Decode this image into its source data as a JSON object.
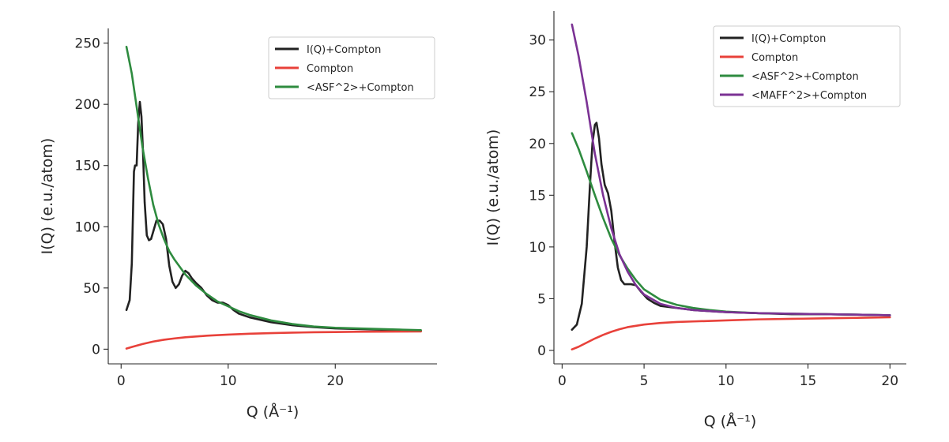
{
  "chart_data": [
    {
      "type": "line",
      "xlabel": "Q (Å⁻¹)",
      "ylabel": "I(Q) (e.u./atom)",
      "xlim": [
        -1.2,
        29.5
      ],
      "ylim": [
        -12,
        262
      ],
      "xticks": [
        0,
        10,
        20
      ],
      "yticks": [
        0,
        50,
        100,
        150,
        200,
        250
      ],
      "legend_position": "top-right",
      "grid": false,
      "series": [
        {
          "name": "I(Q)+Compton",
          "color": "#222222",
          "x": [
            0.5,
            0.8,
            1.0,
            1.2,
            1.3,
            1.45,
            1.6,
            1.75,
            1.9,
            2.05,
            2.2,
            2.4,
            2.6,
            2.8,
            3.0,
            3.3,
            3.6,
            3.9,
            4.2,
            4.5,
            4.8,
            5.1,
            5.4,
            5.7,
            6.0,
            6.3,
            6.6,
            7.0,
            7.5,
            8.0,
            8.5,
            9.0,
            9.5,
            10.0,
            10.5,
            11.0,
            12.0,
            14.0,
            16.0,
            18.0,
            20.0,
            22.0,
            24.0,
            26.0,
            28.0
          ],
          "values": [
            32,
            40,
            70,
            145,
            150,
            150,
            185,
            202,
            190,
            160,
            120,
            93,
            89,
            90,
            96,
            105,
            105,
            102,
            90,
            68,
            55,
            50,
            53,
            60,
            64,
            62,
            58,
            54,
            50,
            44,
            40,
            38,
            38,
            36,
            32,
            29,
            26,
            22,
            19.5,
            18,
            17,
            16.5,
            16,
            15.5,
            15
          ]
        },
        {
          "name": "Compton",
          "color": "#e8413a",
          "x": [
            0.5,
            1,
            2,
            3,
            4,
            5,
            6,
            8,
            10,
            12,
            14,
            16,
            18,
            20,
            22,
            24,
            26,
            28
          ],
          "values": [
            0.5,
            1.8,
            4.2,
            6.2,
            7.7,
            8.8,
            9.7,
            11.0,
            11.9,
            12.6,
            13.1,
            13.5,
            13.8,
            14.0,
            14.2,
            14.3,
            14.4,
            14.5
          ]
        },
        {
          "name": "<ASF^2>+Compton",
          "color": "#2e8b3f",
          "x": [
            0.5,
            1,
            1.5,
            2,
            2.5,
            3,
            3.5,
            4,
            4.5,
            5,
            6,
            7,
            8,
            9,
            10,
            11,
            12,
            14,
            16,
            18,
            20,
            22,
            24,
            26,
            28
          ],
          "values": [
            247,
            225,
            195,
            165,
            140,
            118,
            102,
            90,
            80,
            73,
            61,
            52,
            45,
            39,
            35,
            31,
            28,
            23.5,
            20.5,
            18.5,
            17.5,
            17,
            16.5,
            16,
            15.5
          ]
        }
      ]
    },
    {
      "type": "line",
      "xlabel": "Q (Å⁻¹)",
      "ylabel": "I(Q) (e.u./atom)",
      "xlim": [
        -0.5,
        21
      ],
      "ylim": [
        -1.3,
        32.8
      ],
      "xticks": [
        0,
        5,
        10,
        15,
        20
      ],
      "yticks": [
        0,
        5,
        10,
        15,
        20,
        25,
        30
      ],
      "legend_position": "top-right",
      "grid": false,
      "series": [
        {
          "name": "I(Q)+Compton",
          "color": "#222222",
          "x": [
            0.6,
            0.9,
            1.2,
            1.5,
            1.7,
            1.85,
            2.0,
            2.1,
            2.25,
            2.4,
            2.6,
            2.8,
            3.0,
            3.2,
            3.4,
            3.6,
            3.8,
            4.0,
            4.2,
            4.5,
            4.8,
            5.2,
            5.6,
            6.0,
            7.0,
            8.0,
            9.0,
            10.0,
            12.0,
            14.0,
            16.0,
            18.0,
            20.0
          ],
          "values": [
            2,
            2.5,
            4.5,
            10,
            16,
            20,
            21.8,
            22,
            20.5,
            18,
            16,
            15.2,
            13.5,
            10.5,
            8,
            6.8,
            6.4,
            6.4,
            6.4,
            6.3,
            5.7,
            5.0,
            4.6,
            4.3,
            4.1,
            3.9,
            3.8,
            3.7,
            3.6,
            3.5,
            3.5,
            3.45,
            3.4
          ]
        },
        {
          "name": "Compton",
          "color": "#e8413a",
          "x": [
            0.6,
            1,
            1.5,
            2,
            2.5,
            3,
            3.5,
            4,
            5,
            6,
            7,
            8,
            10,
            12,
            14,
            16,
            18,
            20
          ],
          "values": [
            0.1,
            0.35,
            0.75,
            1.15,
            1.5,
            1.8,
            2.05,
            2.25,
            2.5,
            2.65,
            2.75,
            2.8,
            2.9,
            3.0,
            3.05,
            3.1,
            3.15,
            3.2
          ]
        },
        {
          "name": "<ASF^2>+Compton",
          "color": "#2e8b3f",
          "x": [
            0.6,
            1,
            1.5,
            2,
            2.5,
            3,
            3.5,
            4,
            4.5,
            5,
            6,
            7,
            8,
            9,
            10,
            12,
            14,
            16,
            18,
            20
          ],
          "values": [
            21,
            19.5,
            17.3,
            15,
            12.8,
            10.8,
            9.2,
            7.9,
            6.8,
            5.9,
            4.9,
            4.4,
            4.1,
            3.9,
            3.75,
            3.6,
            3.55,
            3.5,
            3.45,
            3.4
          ]
        },
        {
          "name": "<MAFF^2>+Compton",
          "color": "#7b3294",
          "x": [
            0.6,
            1,
            1.5,
            2,
            2.5,
            3,
            3.5,
            4,
            4.5,
            5,
            6,
            7,
            8,
            9,
            10,
            12,
            14,
            16,
            18,
            20
          ],
          "values": [
            31.5,
            28.5,
            24,
            19,
            15,
            11.8,
            9.3,
            7.6,
            6.3,
            5.4,
            4.5,
            4.1,
            3.9,
            3.8,
            3.7,
            3.6,
            3.55,
            3.5,
            3.45,
            3.4
          ]
        }
      ]
    }
  ]
}
